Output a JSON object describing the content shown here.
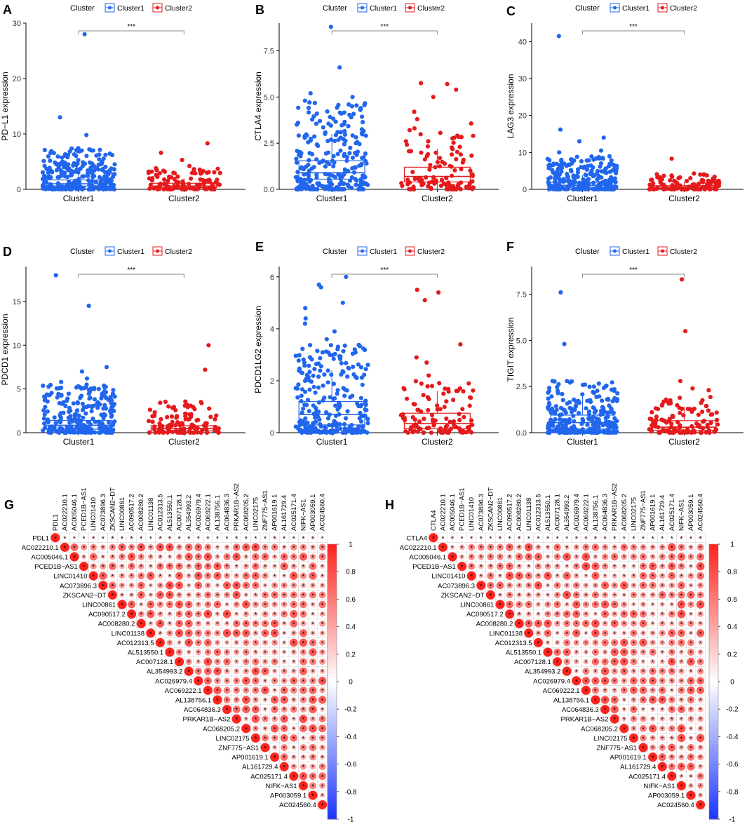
{
  "legend": {
    "title": "Cluster",
    "items": [
      "Cluster1",
      "Cluster2"
    ]
  },
  "colors": {
    "cluster1": "#2166ed",
    "cluster2": "#e41a1c",
    "axis": "#000000",
    "tick": "#333333",
    "grid": "#cccccc"
  },
  "chart_data": [
    {
      "id": "A",
      "type": "box",
      "panel_label": "A",
      "title": "",
      "xlabel": "",
      "ylabel": "PD−L1 expression",
      "categories": [
        "Cluster1",
        "Cluster2"
      ],
      "ylim": [
        0,
        30
      ],
      "yticks": [
        0,
        10,
        20,
        30
      ],
      "significance": "***",
      "series": [
        {
          "name": "Cluster1",
          "q1": 0.6,
          "median": 1.0,
          "q3": 1.7,
          "whisker_low": 0.0,
          "whisker_high": 3.2,
          "spread_top": 7.5,
          "outliers": [
            28.0,
            13.0,
            9.8,
            7.4,
            7.0,
            6.6,
            6.2,
            5.8,
            5.4,
            5.0,
            4.6,
            4.2,
            3.9,
            3.6
          ]
        },
        {
          "name": "Cluster2",
          "q1": 0.3,
          "median": 0.6,
          "q3": 1.1,
          "whisker_low": 0.0,
          "whisker_high": 2.0,
          "spread_top": 3.8,
          "outliers": [
            8.3,
            6.6,
            5.3,
            4.2,
            3.8
          ]
        }
      ]
    },
    {
      "id": "B",
      "type": "box",
      "panel_label": "B",
      "title": "",
      "xlabel": "",
      "ylabel": "CTLA4 expression",
      "categories": [
        "Cluster1",
        "Cluster2"
      ],
      "ylim": [
        0,
        9
      ],
      "yticks": [
        0.0,
        2.5,
        5.0,
        7.5
      ],
      "significance": "***",
      "series": [
        {
          "name": "Cluster1",
          "q1": 0.55,
          "median": 0.9,
          "q3": 1.55,
          "whisker_low": 0.0,
          "whisker_high": 3.0,
          "spread_top": 5.0,
          "outliers": [
            8.8,
            6.6,
            5.2,
            5.0,
            4.8,
            4.5,
            4.3,
            4.1,
            3.9,
            3.7
          ]
        },
        {
          "name": "Cluster2",
          "q1": 0.4,
          "median": 0.7,
          "q3": 1.2,
          "whisker_low": 0.0,
          "whisker_high": 2.2,
          "spread_top": 3.6,
          "outliers": [
            5.7,
            5.75,
            5.4,
            5.0,
            4.2,
            3.8
          ]
        }
      ]
    },
    {
      "id": "C",
      "type": "box",
      "panel_label": "C",
      "title": "",
      "xlabel": "",
      "ylabel": "LAG3 expression",
      "categories": [
        "Cluster1",
        "Cluster2"
      ],
      "ylim": [
        0,
        45
      ],
      "yticks": [
        0,
        10,
        20,
        30,
        40
      ],
      "significance": "***",
      "series": [
        {
          "name": "Cluster1",
          "q1": 0.6,
          "median": 1.1,
          "q3": 1.9,
          "whisker_low": 0.0,
          "whisker_high": 3.8,
          "spread_top": 9.0,
          "outliers": [
            41.5,
            16.2,
            14.0,
            13.0,
            10.5,
            10.0,
            8.5,
            7.8,
            7.0,
            6.2,
            5.5
          ]
        },
        {
          "name": "Cluster2",
          "q1": 0.3,
          "median": 0.6,
          "q3": 1.0,
          "whisker_low": 0.0,
          "whisker_high": 2.0,
          "spread_top": 4.2,
          "outliers": [
            8.3,
            4.3,
            4.0
          ]
        }
      ]
    },
    {
      "id": "D",
      "type": "box",
      "panel_label": "D",
      "title": "",
      "xlabel": "",
      "ylabel": "PDCD1 expression",
      "categories": [
        "Cluster1",
        "Cluster2"
      ],
      "ylim": [
        0,
        19
      ],
      "yticks": [
        0,
        5,
        10,
        15
      ],
      "significance": "***",
      "series": [
        {
          "name": "Cluster1",
          "q1": 0.4,
          "median": 0.85,
          "q3": 1.4,
          "whisker_low": 0.0,
          "whisker_high": 2.8,
          "spread_top": 5.5,
          "outliers": [
            18.0,
            14.5,
            7.5,
            7.0,
            6.2,
            5.8,
            5.5,
            5.2,
            4.9,
            4.6
          ]
        },
        {
          "name": "Cluster2",
          "q1": 0.2,
          "median": 0.5,
          "q3": 0.8,
          "whisker_low": 0.0,
          "whisker_high": 1.6,
          "spread_top": 3.6,
          "outliers": [
            10.0,
            7.2,
            3.5,
            3.0
          ]
        }
      ]
    },
    {
      "id": "E",
      "type": "box",
      "panel_label": "E",
      "title": "",
      "xlabel": "",
      "ylabel": "PDCD1LG2 expression",
      "categories": [
        "Cluster1",
        "Cluster2"
      ],
      "ylim": [
        0,
        6.4
      ],
      "yticks": [
        0,
        2,
        4,
        6
      ],
      "significance": "***",
      "series": [
        {
          "name": "Cluster1",
          "q1": 0.3,
          "median": 0.7,
          "q3": 1.2,
          "whisker_low": 0.0,
          "whisker_high": 2.4,
          "spread_top": 3.4,
          "outliers": [
            6.0,
            5.7,
            5.6,
            5.0,
            4.8,
            4.4,
            4.2,
            3.9,
            3.6
          ]
        },
        {
          "name": "Cluster2",
          "q1": 0.15,
          "median": 0.35,
          "q3": 0.75,
          "whisker_low": 0.0,
          "whisker_high": 1.6,
          "spread_top": 2.0,
          "outliers": [
            5.5,
            5.4,
            5.1,
            3.4,
            2.9,
            2.7,
            2.2
          ]
        }
      ]
    },
    {
      "id": "F",
      "type": "box",
      "panel_label": "F",
      "title": "",
      "xlabel": "",
      "ylabel": "TIGIT expression",
      "categories": [
        "Cluster1",
        "Cluster2"
      ],
      "ylim": [
        0,
        9
      ],
      "yticks": [
        0.0,
        2.5,
        5.0,
        7.5
      ],
      "significance": "***",
      "series": [
        {
          "name": "Cluster1",
          "q1": 0.2,
          "median": 0.55,
          "q3": 0.95,
          "whisker_low": 0.0,
          "whisker_high": 2.0,
          "spread_top": 2.8,
          "outliers": [
            7.6,
            4.8,
            2.8,
            2.6
          ]
        },
        {
          "name": "Cluster2",
          "q1": 0.12,
          "median": 0.3,
          "q3": 0.65,
          "whisker_low": 0.0,
          "whisker_high": 1.4,
          "spread_top": 2.0,
          "outliers": [
            8.3,
            5.5,
            2.8,
            2.4,
            2.3
          ]
        }
      ]
    },
    {
      "id": "G",
      "type": "heatmap",
      "panel_label": "G",
      "subtype": "correlation-upper-triangle",
      "labels": [
        "PDL1",
        "AC022210.1",
        "AC005046.1",
        "PCED1B−AS1",
        "LINC01410",
        "AC073896.3",
        "ZKSCAN2−DT",
        "LINC00861",
        "AC090517.2",
        "AC008280.2",
        "LINC01138",
        "AC012313.5",
        "AL513550.1",
        "AC007128.1",
        "AL354993.2",
        "AC026979.4",
        "AC069222.1",
        "AL138756.1",
        "AC064836.3",
        "PRKAR1B−AS2",
        "AC068205.2",
        "LINC02175",
        "ZNF775−AS1",
        "AP001619.1",
        "AL161729.4",
        "AC025171.4",
        "NIFK−AS1",
        "AP003059.1",
        "AC024560.4"
      ],
      "colorbar": {
        "min": -1,
        "max": 1,
        "ticks": [
          1,
          0.8,
          0.6,
          0.4,
          0.2,
          0,
          -0.2,
          -0.4,
          -0.6,
          -0.8,
          -1
        ]
      },
      "cell_marker": "*",
      "values": "mostly positive correlations (~0.3–0.9) among lncRNAs; weak positive with PDL1; diagonal = 1"
    },
    {
      "id": "H",
      "type": "heatmap",
      "panel_label": "H",
      "subtype": "correlation-upper-triangle",
      "labels": [
        "CTLA4",
        "AC022210.1",
        "AC005046.1",
        "PCED1B−AS1",
        "LINC01410",
        "AC073896.3",
        "ZKSCAN2−DT",
        "LINC00861",
        "AC090517.2",
        "AC008280.2",
        "LINC01138",
        "AC012313.5",
        "AL513550.1",
        "AC007128.1",
        "AL354993.2",
        "AC026979.4",
        "AC069222.1",
        "AL138756.1",
        "AC064836.3",
        "PRKAR1B−AS2",
        "AC068205.2",
        "LINC02175",
        "ZNF775−AS1",
        "AP001619.1",
        "AL161729.4",
        "AC025171.4",
        "NIFK−AS1",
        "AP003059.1",
        "AC024560.4"
      ],
      "colorbar": {
        "min": -1,
        "max": 1,
        "ticks": [
          1,
          0.8,
          0.6,
          0.4,
          0.2,
          0,
          -0.2,
          -0.4,
          -0.6,
          -0.8,
          -1
        ]
      },
      "cell_marker": "*",
      "values": "mostly positive correlations (~0.3–0.9) among lncRNAs; weak positive with CTLA4; diagonal = 1"
    }
  ]
}
